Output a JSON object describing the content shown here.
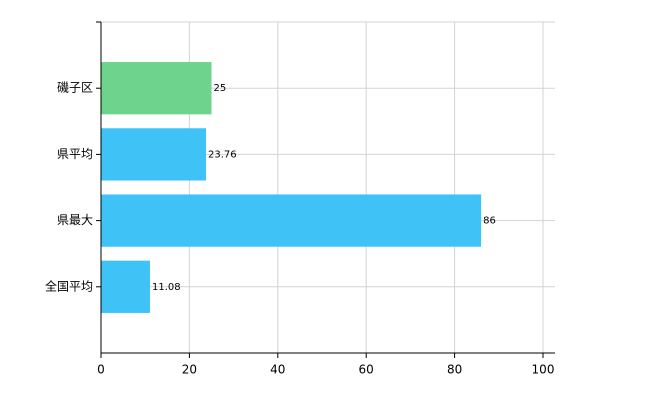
{
  "chart_data": {
    "type": "barh",
    "categories": [
      "磯子区",
      "県平均",
      "県最大",
      "全国平均"
    ],
    "values": [
      25,
      23.76,
      86,
      11.08
    ],
    "colors": [
      "#6dd38d",
      "#3fc3f7",
      "#3fc3f7",
      "#3fc3f7"
    ],
    "xlim": [
      0,
      100
    ],
    "xticks": [
      0,
      20,
      40,
      60,
      80,
      100
    ],
    "grid": true
  }
}
